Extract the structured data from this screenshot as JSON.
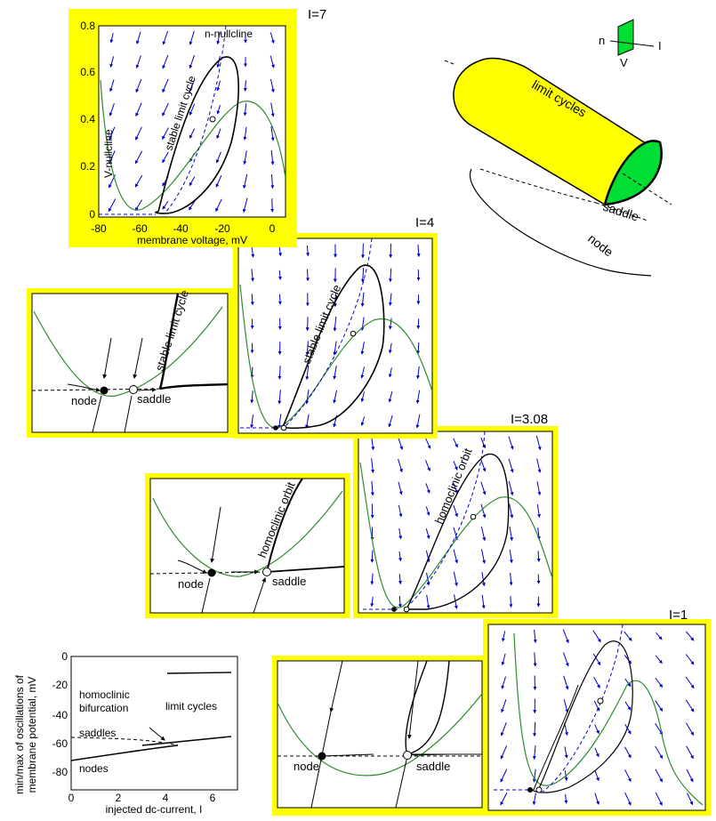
{
  "panel_main": {
    "label": "I=7",
    "xlabel": "membrane voltage, mV",
    "x_ticks": [
      "-80",
      "-60",
      "-40",
      "-20",
      "0"
    ],
    "y_ticks": [
      "0",
      "0.2",
      "0.4",
      "0.6",
      "0.8"
    ],
    "n_nullcline": "n-nullcline",
    "v_nullcline": "V-nullcline",
    "cycle_label": "stable limit cycle"
  },
  "panel_i4": {
    "label": "I=4",
    "cycle_label": "stable limit cycle"
  },
  "inset_i4": {
    "cycle_label": "stable limit cycle",
    "node": "node",
    "saddle": "saddle"
  },
  "panel_i308": {
    "label": "I=3.08",
    "orbit_label": "homoclinic orbit"
  },
  "inset_i308": {
    "orbit_label": "homoclinic orbit",
    "node": "node",
    "saddle": "saddle"
  },
  "panel_i1": {
    "label": "I=1"
  },
  "inset_i1": {
    "node": "node",
    "saddle": "saddle"
  },
  "sketch_3d": {
    "limit_cycles": "limit cycles",
    "saddle": "saddle",
    "node": "node",
    "axis_n": "n",
    "axis_v": "V",
    "axis_i": "I"
  },
  "bifurcation_plot": {
    "ylabel_line1": "min/max of oscillations of",
    "ylabel_line2": "membrane potential, mV",
    "xlabel": "injected dc-current, I",
    "x_ticks": [
      "0",
      "2",
      "4",
      "6"
    ],
    "y_ticks": [
      "0",
      "-20",
      "-40",
      "-60",
      "-80"
    ],
    "homoclinic_line1": "homoclinic",
    "homoclinic_line2": "bifurcation",
    "limit_cycles": "limit cycles",
    "saddles": "saddles",
    "nodes": "nodes"
  },
  "colors": {
    "panel_frame": "#ffff00",
    "vector_field": "#0000cc",
    "v_nullcline": "#2e8b2e",
    "cycle_fill": "#00dd33",
    "tube": "#ffff00"
  }
}
